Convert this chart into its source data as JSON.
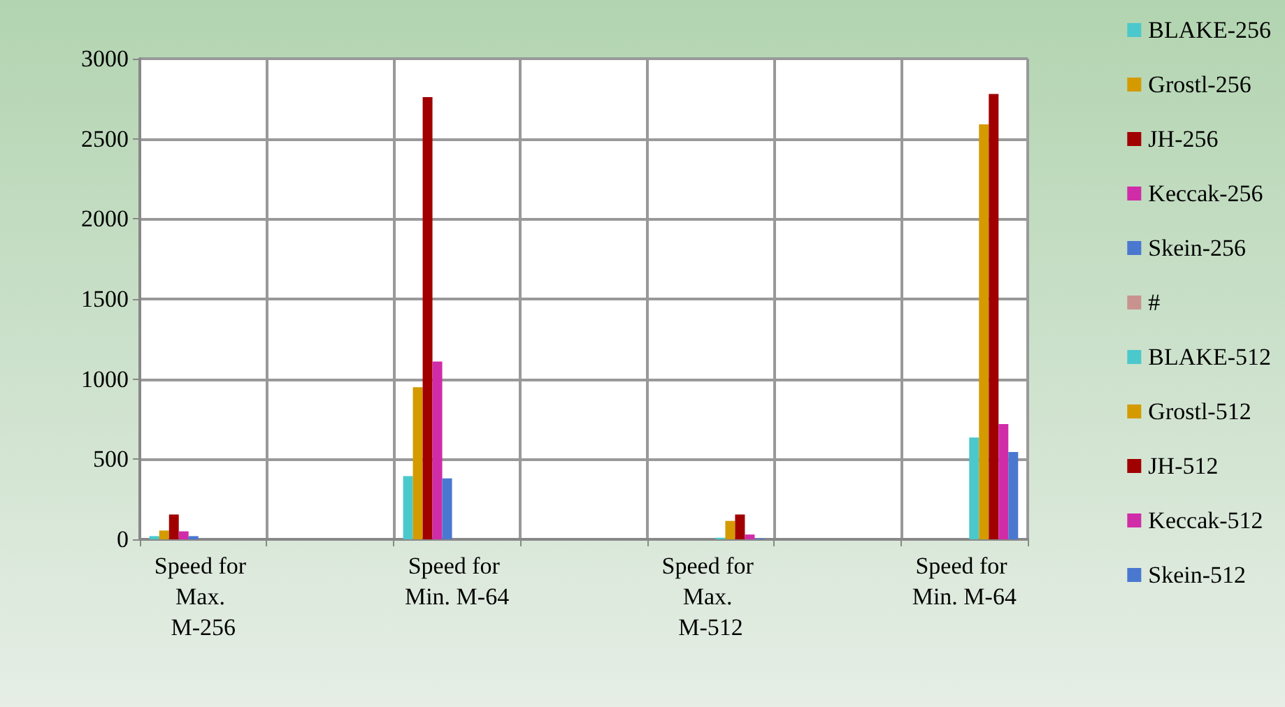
{
  "chart_data": {
    "type": "bar",
    "categories": [
      "Speed for Max. M-256",
      null,
      "Speed for Min. M-64",
      null,
      "Speed for Max. M-512",
      null,
      "Speed for Min. M-64"
    ],
    "series": [
      {
        "name": "BLAKE-256",
        "color": "#4bc8cc",
        "values": [
          20,
          null,
          395,
          null,
          null,
          null,
          null
        ]
      },
      {
        "name": "Grostl-256",
        "color": "#d49a00",
        "values": [
          55,
          null,
          950,
          null,
          null,
          null,
          null
        ]
      },
      {
        "name": "JH-256",
        "color": "#a00000",
        "values": [
          155,
          null,
          2760,
          null,
          null,
          null,
          null
        ]
      },
      {
        "name": "Keccak-256",
        "color": "#d02ca8",
        "values": [
          50,
          null,
          1110,
          null,
          null,
          null,
          null
        ]
      },
      {
        "name": "Skein-256",
        "color": "#4a78d0",
        "values": [
          20,
          null,
          380,
          null,
          null,
          null,
          null
        ]
      },
      {
        "name": "#",
        "color": "#c8938f",
        "values": [
          null,
          null,
          null,
          null,
          null,
          null,
          null
        ]
      },
      {
        "name": "BLAKE-512",
        "color": "#4bc8cc",
        "values": [
          null,
          null,
          null,
          null,
          10,
          null,
          635
        ]
      },
      {
        "name": "Grostl-512",
        "color": "#d49a00",
        "values": [
          null,
          null,
          null,
          null,
          115,
          null,
          2590
        ]
      },
      {
        "name": "JH-512",
        "color": "#a00000",
        "values": [
          null,
          null,
          null,
          null,
          155,
          null,
          2780
        ]
      },
      {
        "name": "Keccak-512",
        "color": "#d02ca8",
        "values": [
          null,
          null,
          null,
          null,
          30,
          null,
          720
        ]
      },
      {
        "name": "Skein-512",
        "color": "#4a78d0",
        "values": [
          null,
          null,
          null,
          null,
          5,
          null,
          545
        ]
      }
    ],
    "ylim": [
      0,
      3000
    ],
    "yticks": [
      0,
      500,
      1000,
      1500,
      2000,
      2500,
      3000
    ],
    "grid": true,
    "legend": "right"
  }
}
